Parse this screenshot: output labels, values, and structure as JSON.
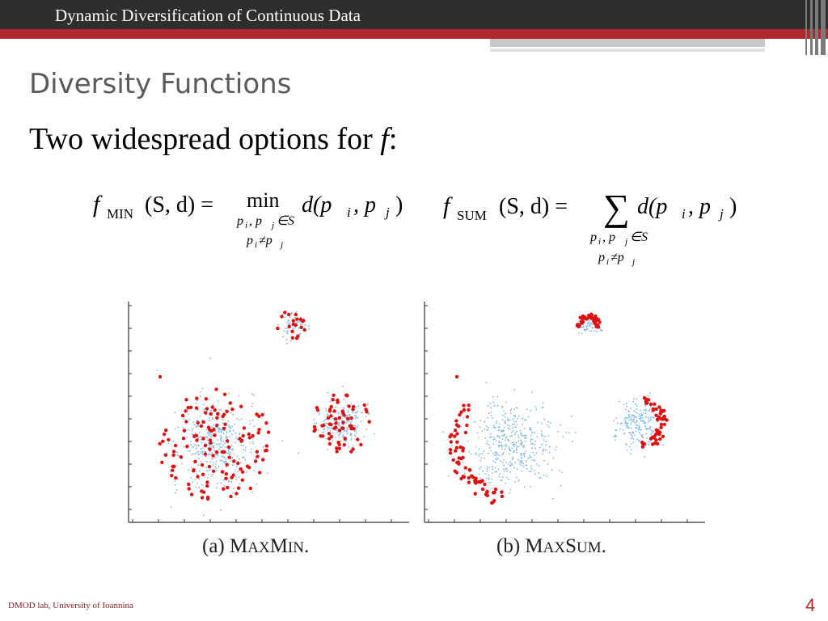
{
  "header": {
    "title": "Dynamic Diversification of Continuous Data"
  },
  "slide": {
    "title": "Diversity Functions",
    "subtitle_prefix": "Two widespread options for ",
    "subtitle_var": "f",
    "subtitle_suffix": ":"
  },
  "formulas": {
    "min": {
      "f": "f",
      "sub": "MIN",
      "args": "(S, d) =",
      "op": "min",
      "term": "d(p",
      "pi_sub": "i",
      "comma": ", p",
      "pj_sub": "j",
      "close": ")",
      "cond1": "p",
      "cond1_i": "i",
      "cond1_mid": ", p",
      "cond1_j": "j",
      "cond1_end": "∈S",
      "cond2": "p",
      "cond2_i": "i",
      "cond2_mid": "≠p",
      "cond2_j": "j"
    },
    "sum": {
      "f": "f",
      "sub": "SUM",
      "args": "(S, d) =",
      "op": "∑",
      "term": "d(p",
      "pi_sub": "i",
      "comma": ", p",
      "pj_sub": "j",
      "close": ")",
      "cond1": "p",
      "cond1_i": "i",
      "cond1_mid": ", p",
      "cond1_j": "j",
      "cond1_end": "∈S",
      "cond2": "p",
      "cond2_i": "i",
      "cond2_mid": "≠p",
      "cond2_j": "j"
    }
  },
  "captions": {
    "a_prefix": "(a) M",
    "a_sc1": "AX",
    "a_mid": "M",
    "a_sc2": "IN",
    "a_end": ".",
    "b_prefix": "(b) M",
    "b_sc1": "AX",
    "b_mid": "S",
    "b_sc2": "UM",
    "b_end": "."
  },
  "footer": {
    "left": "DMOD lab, University of Ioannina",
    "page": "4"
  },
  "colors": {
    "selected": "#e01010",
    "data": "#7fb5e8",
    "accent": "#b1292e",
    "topbar": "#2e2e2e"
  }
}
